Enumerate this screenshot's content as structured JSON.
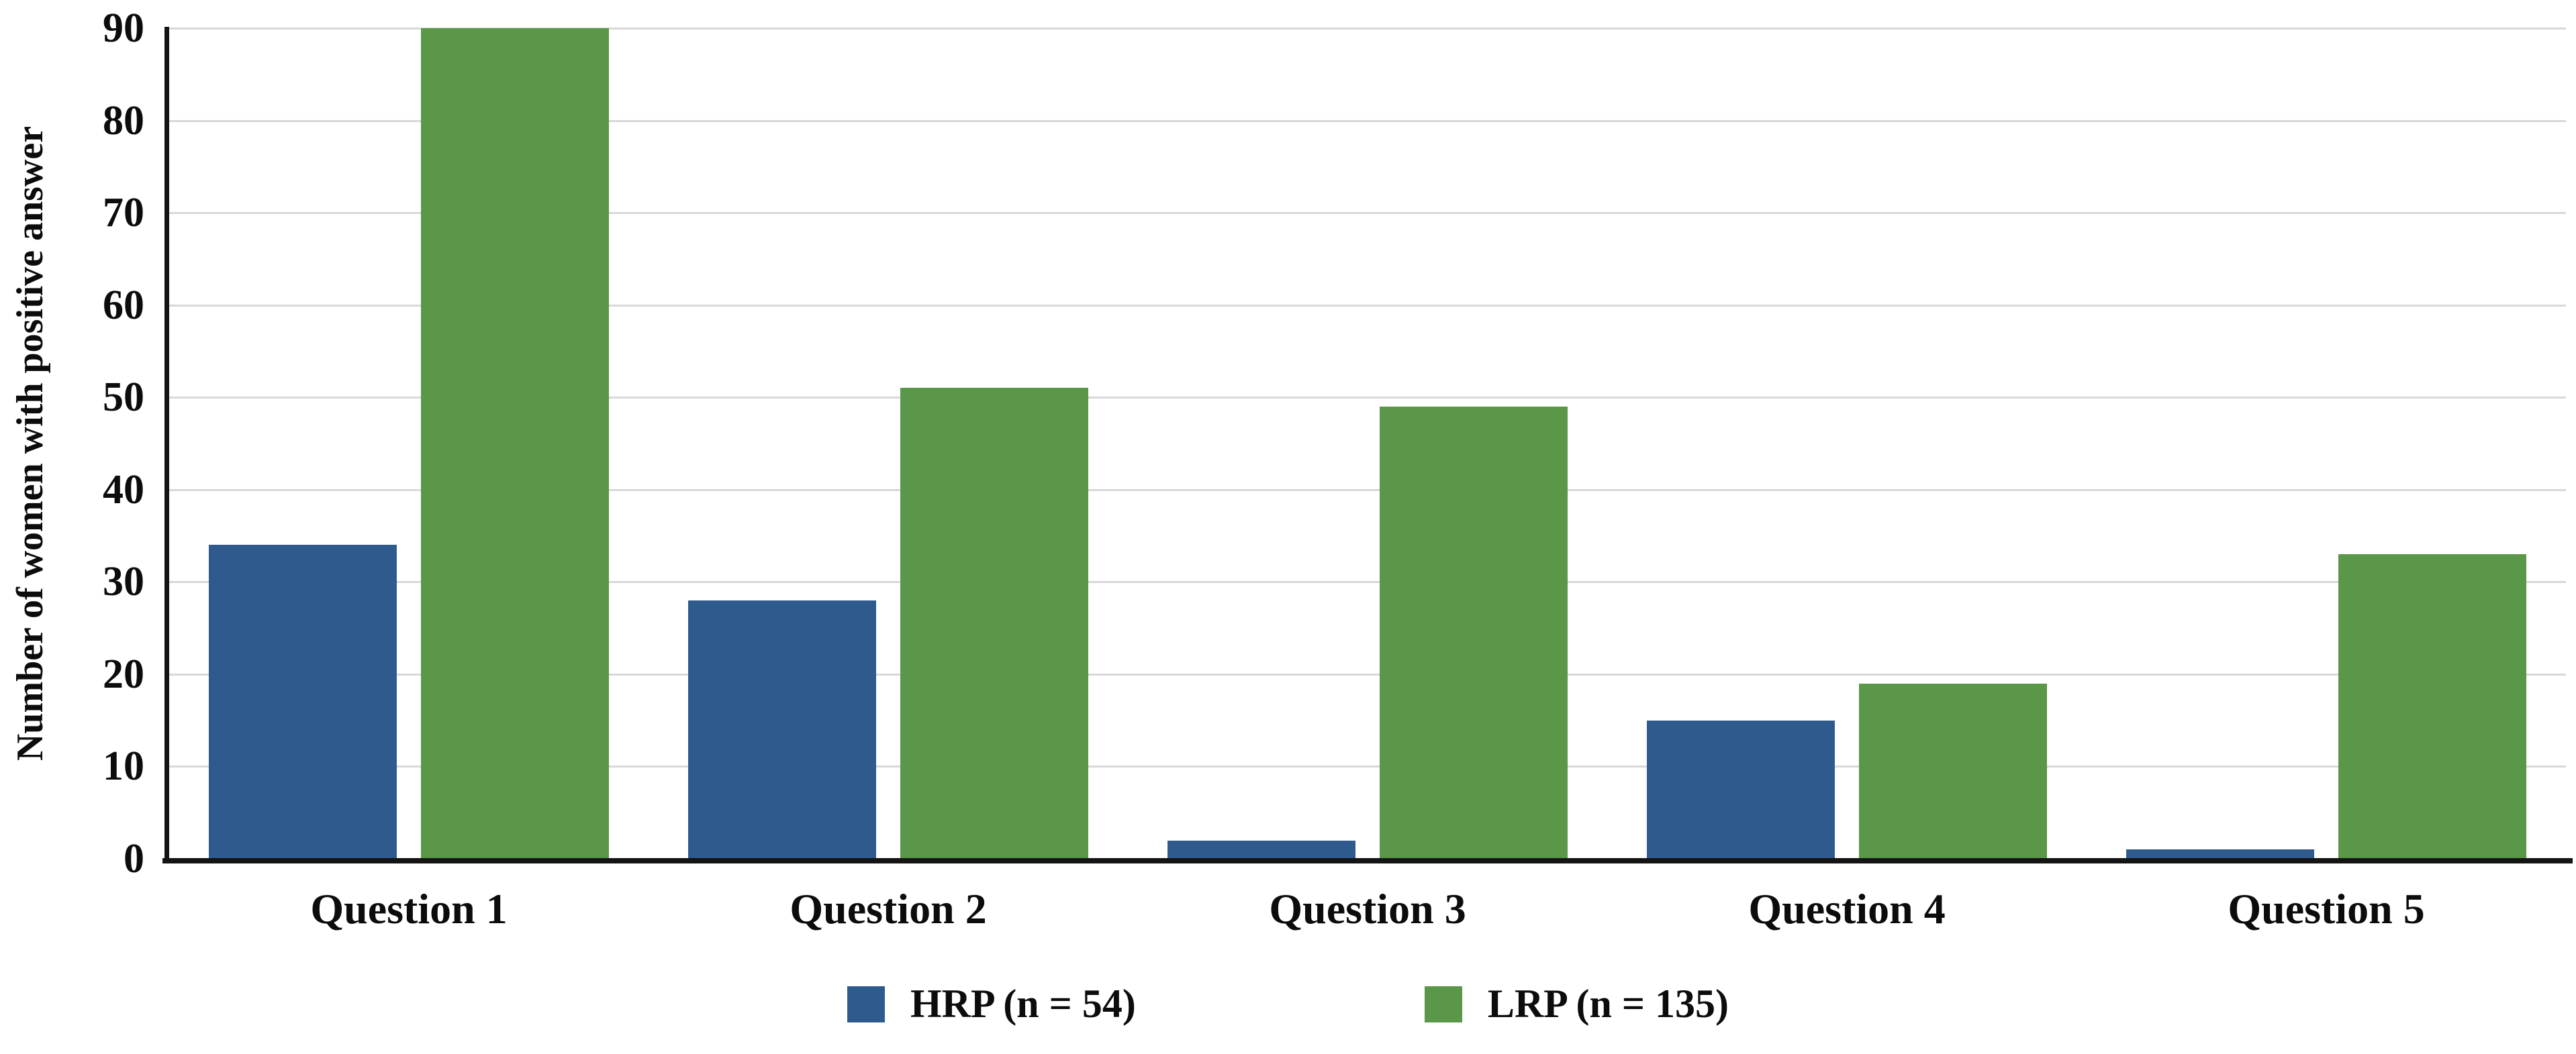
{
  "chart_data": {
    "type": "bar",
    "title": "",
    "categories": [
      "Question 1",
      "Question 2",
      "Question 3",
      "Question 4",
      "Question 5"
    ],
    "series": [
      {
        "name": "HRP (n = 54)",
        "color": "#2F5A8E",
        "values": [
          34,
          28,
          2,
          15,
          1
        ]
      },
      {
        "name": "LRP (n = 135)",
        "color": "#5B9749",
        "values": [
          90,
          51,
          49,
          19,
          33
        ]
      }
    ],
    "xlabel": "",
    "ylabel": "Number of women with positive answer",
    "ylim": [
      0,
      90
    ],
    "ytick_step": 10,
    "yticks": [
      0,
      10,
      20,
      30,
      40,
      50,
      60,
      70,
      80,
      90
    ],
    "grid": true,
    "legend_position": "bottom",
    "colors": {
      "hrp_bar": "#2F5A8E",
      "lrp_bar": "#5B9749",
      "gridline": "#d8d8d8",
      "axis": "#141414",
      "text": "#0c0c0c",
      "background": "#ffffff"
    }
  }
}
